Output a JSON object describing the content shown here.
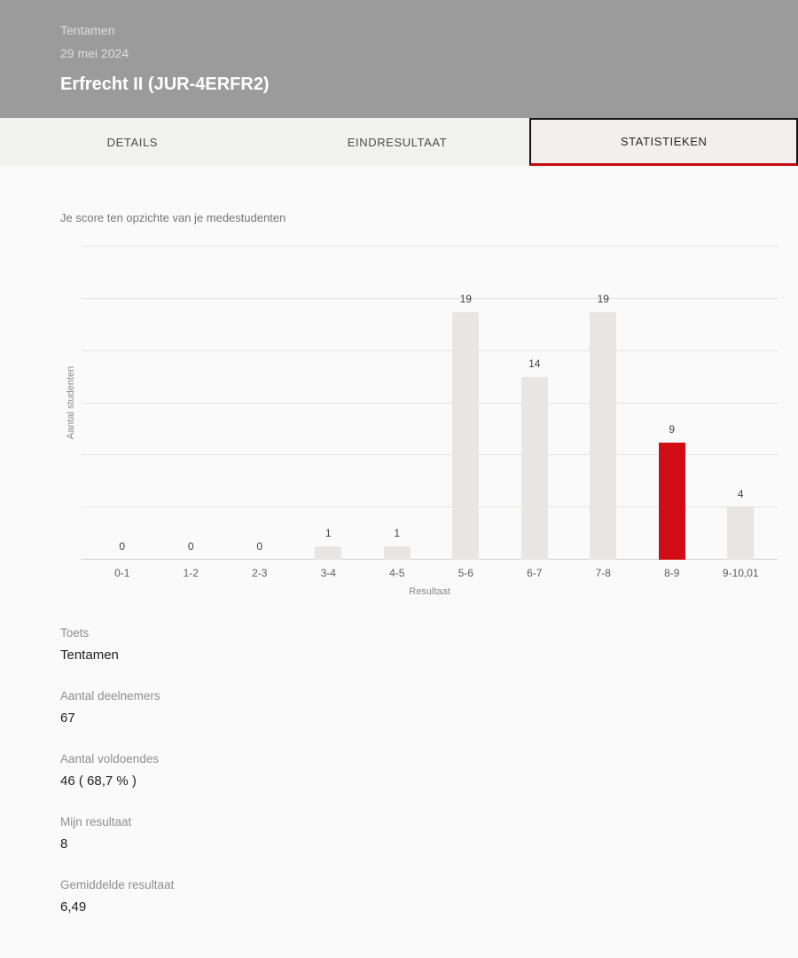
{
  "header": {
    "type_label": "Tentamen",
    "date": "29 mei 2024",
    "course_title": "Erfrecht II (JUR-4ERFR2)"
  },
  "tabs": [
    {
      "label": "DETAILS",
      "active": false
    },
    {
      "label": "EINDRESULTAAT",
      "active": false
    },
    {
      "label": "STATISTIEKEN",
      "active": true
    }
  ],
  "chart_data": {
    "type": "bar",
    "title": "Je score ten opzichte van je medestudenten",
    "categories": [
      "0-1",
      "1-2",
      "2-3",
      "3-4",
      "4-5",
      "5-6",
      "6-7",
      "7-8",
      "8-9",
      "9-10,01"
    ],
    "values": [
      0,
      0,
      0,
      1,
      1,
      19,
      14,
      19,
      9,
      4
    ],
    "highlight_index": 8,
    "xlabel": "Resultaat",
    "ylabel": "Aantal studenten",
    "ylim": [
      0,
      24
    ],
    "grid_step": 4,
    "grid": "horizontal only, no y tick labels",
    "legend": "none",
    "bar_color": "#e7e6e4",
    "highlight_color": "#d00d15",
    "data_labels": true
  },
  "details": [
    {
      "label": "Toets",
      "value": "Tentamen"
    },
    {
      "label": "Aantal deelnemers",
      "value": "67"
    },
    {
      "label": "Aantal voldoendes",
      "value": "46 ( 68,7 % )"
    },
    {
      "label": "Mijn resultaat",
      "value": "8"
    },
    {
      "label": "Gemiddelde resultaat",
      "value": "6,49"
    }
  ],
  "colors": {
    "header_bg": "#9b9b9b",
    "accent_red": "#c40a0e",
    "tab_bar_bg": "#f1f1f0",
    "page_bg": "#fafafa"
  }
}
